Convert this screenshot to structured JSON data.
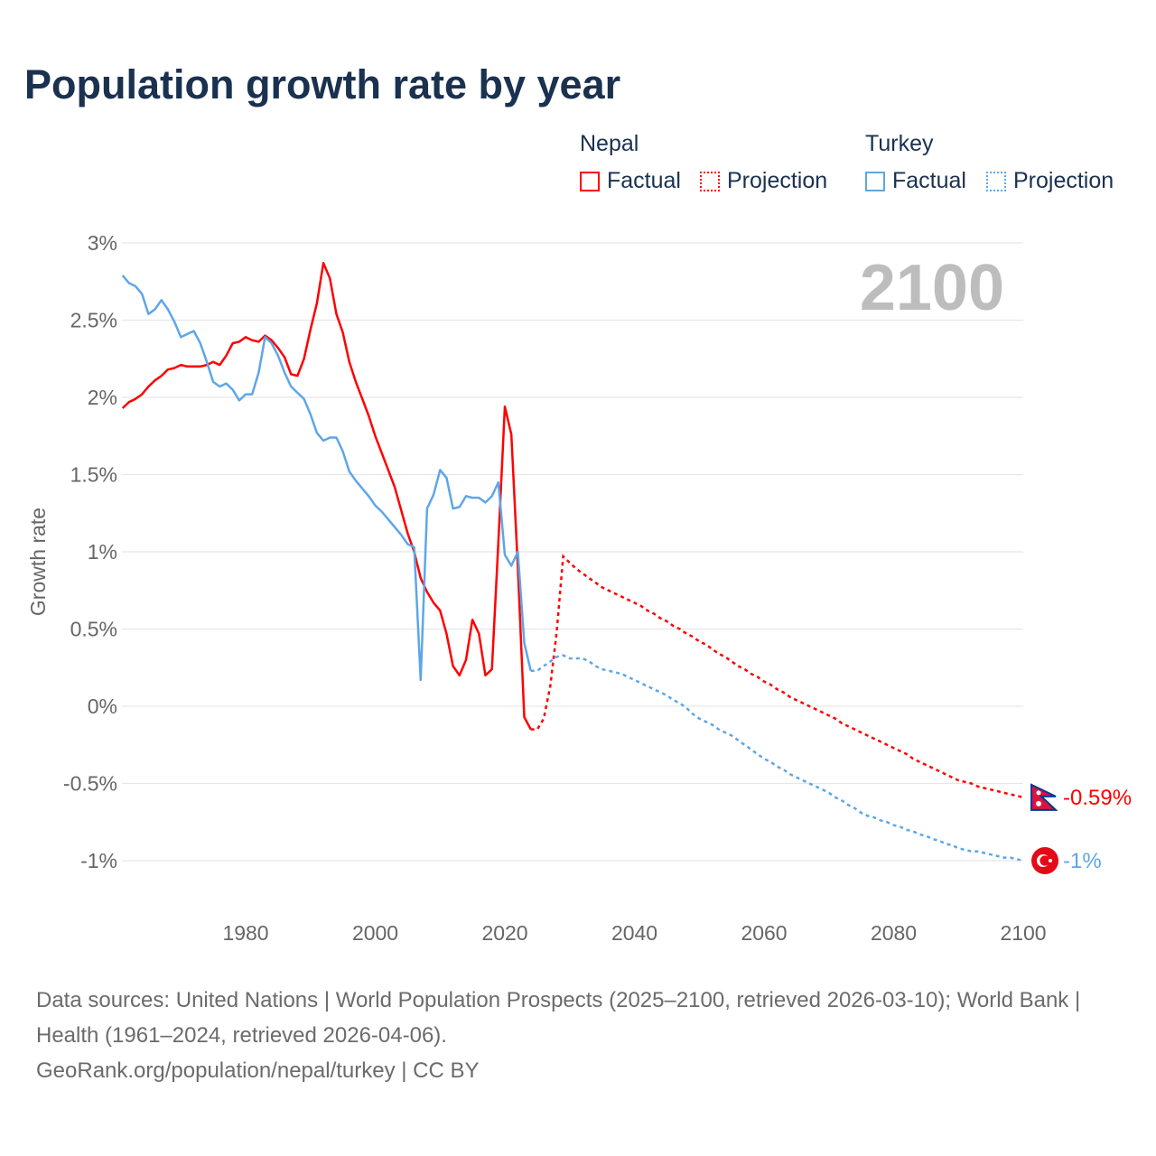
{
  "title": "Population growth rate by year",
  "legend": {
    "groups": [
      {
        "name": "Nepal",
        "factual": "Factual",
        "projection": "Projection",
        "color": "#ff0000"
      },
      {
        "name": "Turkey",
        "factual": "Factual",
        "projection": "Projection",
        "color": "#5ea6e8"
      }
    ]
  },
  "footer": {
    "line1": "Data sources: United Nations | World Population Prospects (2025–2100, retrieved 2026-03-10); World Bank | Health (1961–2024, retrieved 2026-04-06).",
    "line2": "GeoRank.org/population/nepal/turkey | CC BY"
  },
  "chart_data": {
    "type": "line",
    "title": "Population growth rate by year",
    "ylabel": "Growth rate",
    "xlabel": "",
    "xlim": [
      1961,
      2100
    ],
    "ylim": [
      -1,
      3
    ],
    "y_ticks": [
      3,
      2.5,
      2,
      1.5,
      1,
      0.5,
      0,
      -0.5,
      -1
    ],
    "y_tick_labels": [
      "3%",
      "2.5%",
      "2%",
      "1.5%",
      "1%",
      "0.5%",
      "0%",
      "-0.5%",
      "-1%"
    ],
    "x_ticks": [
      1980,
      2000,
      2020,
      2040,
      2060,
      2080,
      2100
    ],
    "x_tick_labels": [
      "1980",
      "2000",
      "2020",
      "2040",
      "2060",
      "2080",
      "2100"
    ],
    "year_watermark": "2100",
    "grid": true,
    "legend_position": "top-right",
    "series": [
      {
        "name": "Nepal",
        "color": "#ff0000",
        "end_label": "-0.59%",
        "factual_start": 1961,
        "factual": [
          1.93,
          1.97,
          1.99,
          2.02,
          2.07,
          2.11,
          2.14,
          2.18,
          2.19,
          2.21,
          2.2,
          2.2,
          2.2,
          2.21,
          2.23,
          2.21,
          2.27,
          2.35,
          2.36,
          2.39,
          2.37,
          2.36,
          2.4,
          2.37,
          2.32,
          2.26,
          2.15,
          2.14,
          2.25,
          2.44,
          2.61,
          2.87,
          2.77,
          2.54,
          2.42,
          2.23,
          2.1,
          1.99,
          1.88,
          1.75,
          1.64,
          1.53,
          1.42,
          1.27,
          1.12,
          1.0,
          0.83,
          0.74,
          0.67,
          0.62,
          0.47,
          0.26,
          0.2,
          0.3,
          0.56,
          0.47,
          0.2,
          0.24,
          1.06,
          1.94,
          1.76,
          0.9,
          -0.07,
          -0.15
        ],
        "projection_start": 2025,
        "projection": [
          -0.15,
          -0.08,
          0.13,
          0.48,
          0.97,
          0.93,
          0.89,
          0.86,
          0.83,
          0.8,
          0.77,
          0.75,
          0.73,
          0.71,
          0.69,
          0.67,
          0.65,
          0.62,
          0.6,
          0.57,
          0.55,
          0.52,
          0.5,
          0.47,
          0.45,
          0.42,
          0.4,
          0.37,
          0.34,
          0.32,
          0.29,
          0.26,
          0.24,
          0.21,
          0.19,
          0.16,
          0.14,
          0.11,
          0.09,
          0.06,
          0.04,
          0.02,
          0.0,
          -0.02,
          -0.04,
          -0.06,
          -0.08,
          -0.11,
          -0.13,
          -0.15,
          -0.17,
          -0.19,
          -0.21,
          -0.23,
          -0.25,
          -0.27,
          -0.29,
          -0.31,
          -0.34,
          -0.36,
          -0.38,
          -0.4,
          -0.42,
          -0.44,
          -0.46,
          -0.48,
          -0.49,
          -0.5,
          -0.52,
          -0.53,
          -0.54,
          -0.55,
          -0.56,
          -0.57,
          -0.58,
          -0.59
        ]
      },
      {
        "name": "Turkey",
        "color": "#5ea6e8",
        "end_label": "-1%",
        "factual_start": 1961,
        "factual": [
          2.79,
          2.74,
          2.72,
          2.67,
          2.54,
          2.57,
          2.63,
          2.57,
          2.49,
          2.39,
          2.41,
          2.43,
          2.35,
          2.23,
          2.1,
          2.07,
          2.09,
          2.05,
          1.98,
          2.02,
          2.02,
          2.16,
          2.39,
          2.35,
          2.27,
          2.16,
          2.07,
          2.03,
          1.99,
          1.89,
          1.77,
          1.72,
          1.74,
          1.74,
          1.65,
          1.52,
          1.46,
          1.41,
          1.36,
          1.3,
          1.26,
          1.21,
          1.16,
          1.11,
          1.05,
          1.03,
          0.17,
          1.28,
          1.37,
          1.53,
          1.48,
          1.28,
          1.29,
          1.36,
          1.35,
          1.35,
          1.32,
          1.36,
          1.45,
          0.98,
          0.91,
          1.0,
          0.41,
          0.23
        ],
        "projection_start": 2025,
        "projection": [
          0.23,
          0.26,
          0.29,
          0.32,
          0.33,
          0.31,
          0.31,
          0.31,
          0.29,
          0.26,
          0.24,
          0.23,
          0.22,
          0.21,
          0.19,
          0.17,
          0.15,
          0.13,
          0.11,
          0.09,
          0.07,
          0.04,
          0.02,
          -0.01,
          -0.05,
          -0.08,
          -0.1,
          -0.12,
          -0.15,
          -0.17,
          -0.19,
          -0.22,
          -0.25,
          -0.28,
          -0.31,
          -0.34,
          -0.36,
          -0.39,
          -0.41,
          -0.44,
          -0.46,
          -0.48,
          -0.5,
          -0.52,
          -0.54,
          -0.56,
          -0.59,
          -0.61,
          -0.64,
          -0.66,
          -0.69,
          -0.71,
          -0.72,
          -0.74,
          -0.75,
          -0.77,
          -0.78,
          -0.8,
          -0.81,
          -0.83,
          -0.84,
          -0.86,
          -0.87,
          -0.89,
          -0.9,
          -0.92,
          -0.93,
          -0.94,
          -0.94,
          -0.95,
          -0.96,
          -0.97,
          -0.98,
          -0.98,
          -0.99,
          -1.0
        ]
      }
    ]
  }
}
